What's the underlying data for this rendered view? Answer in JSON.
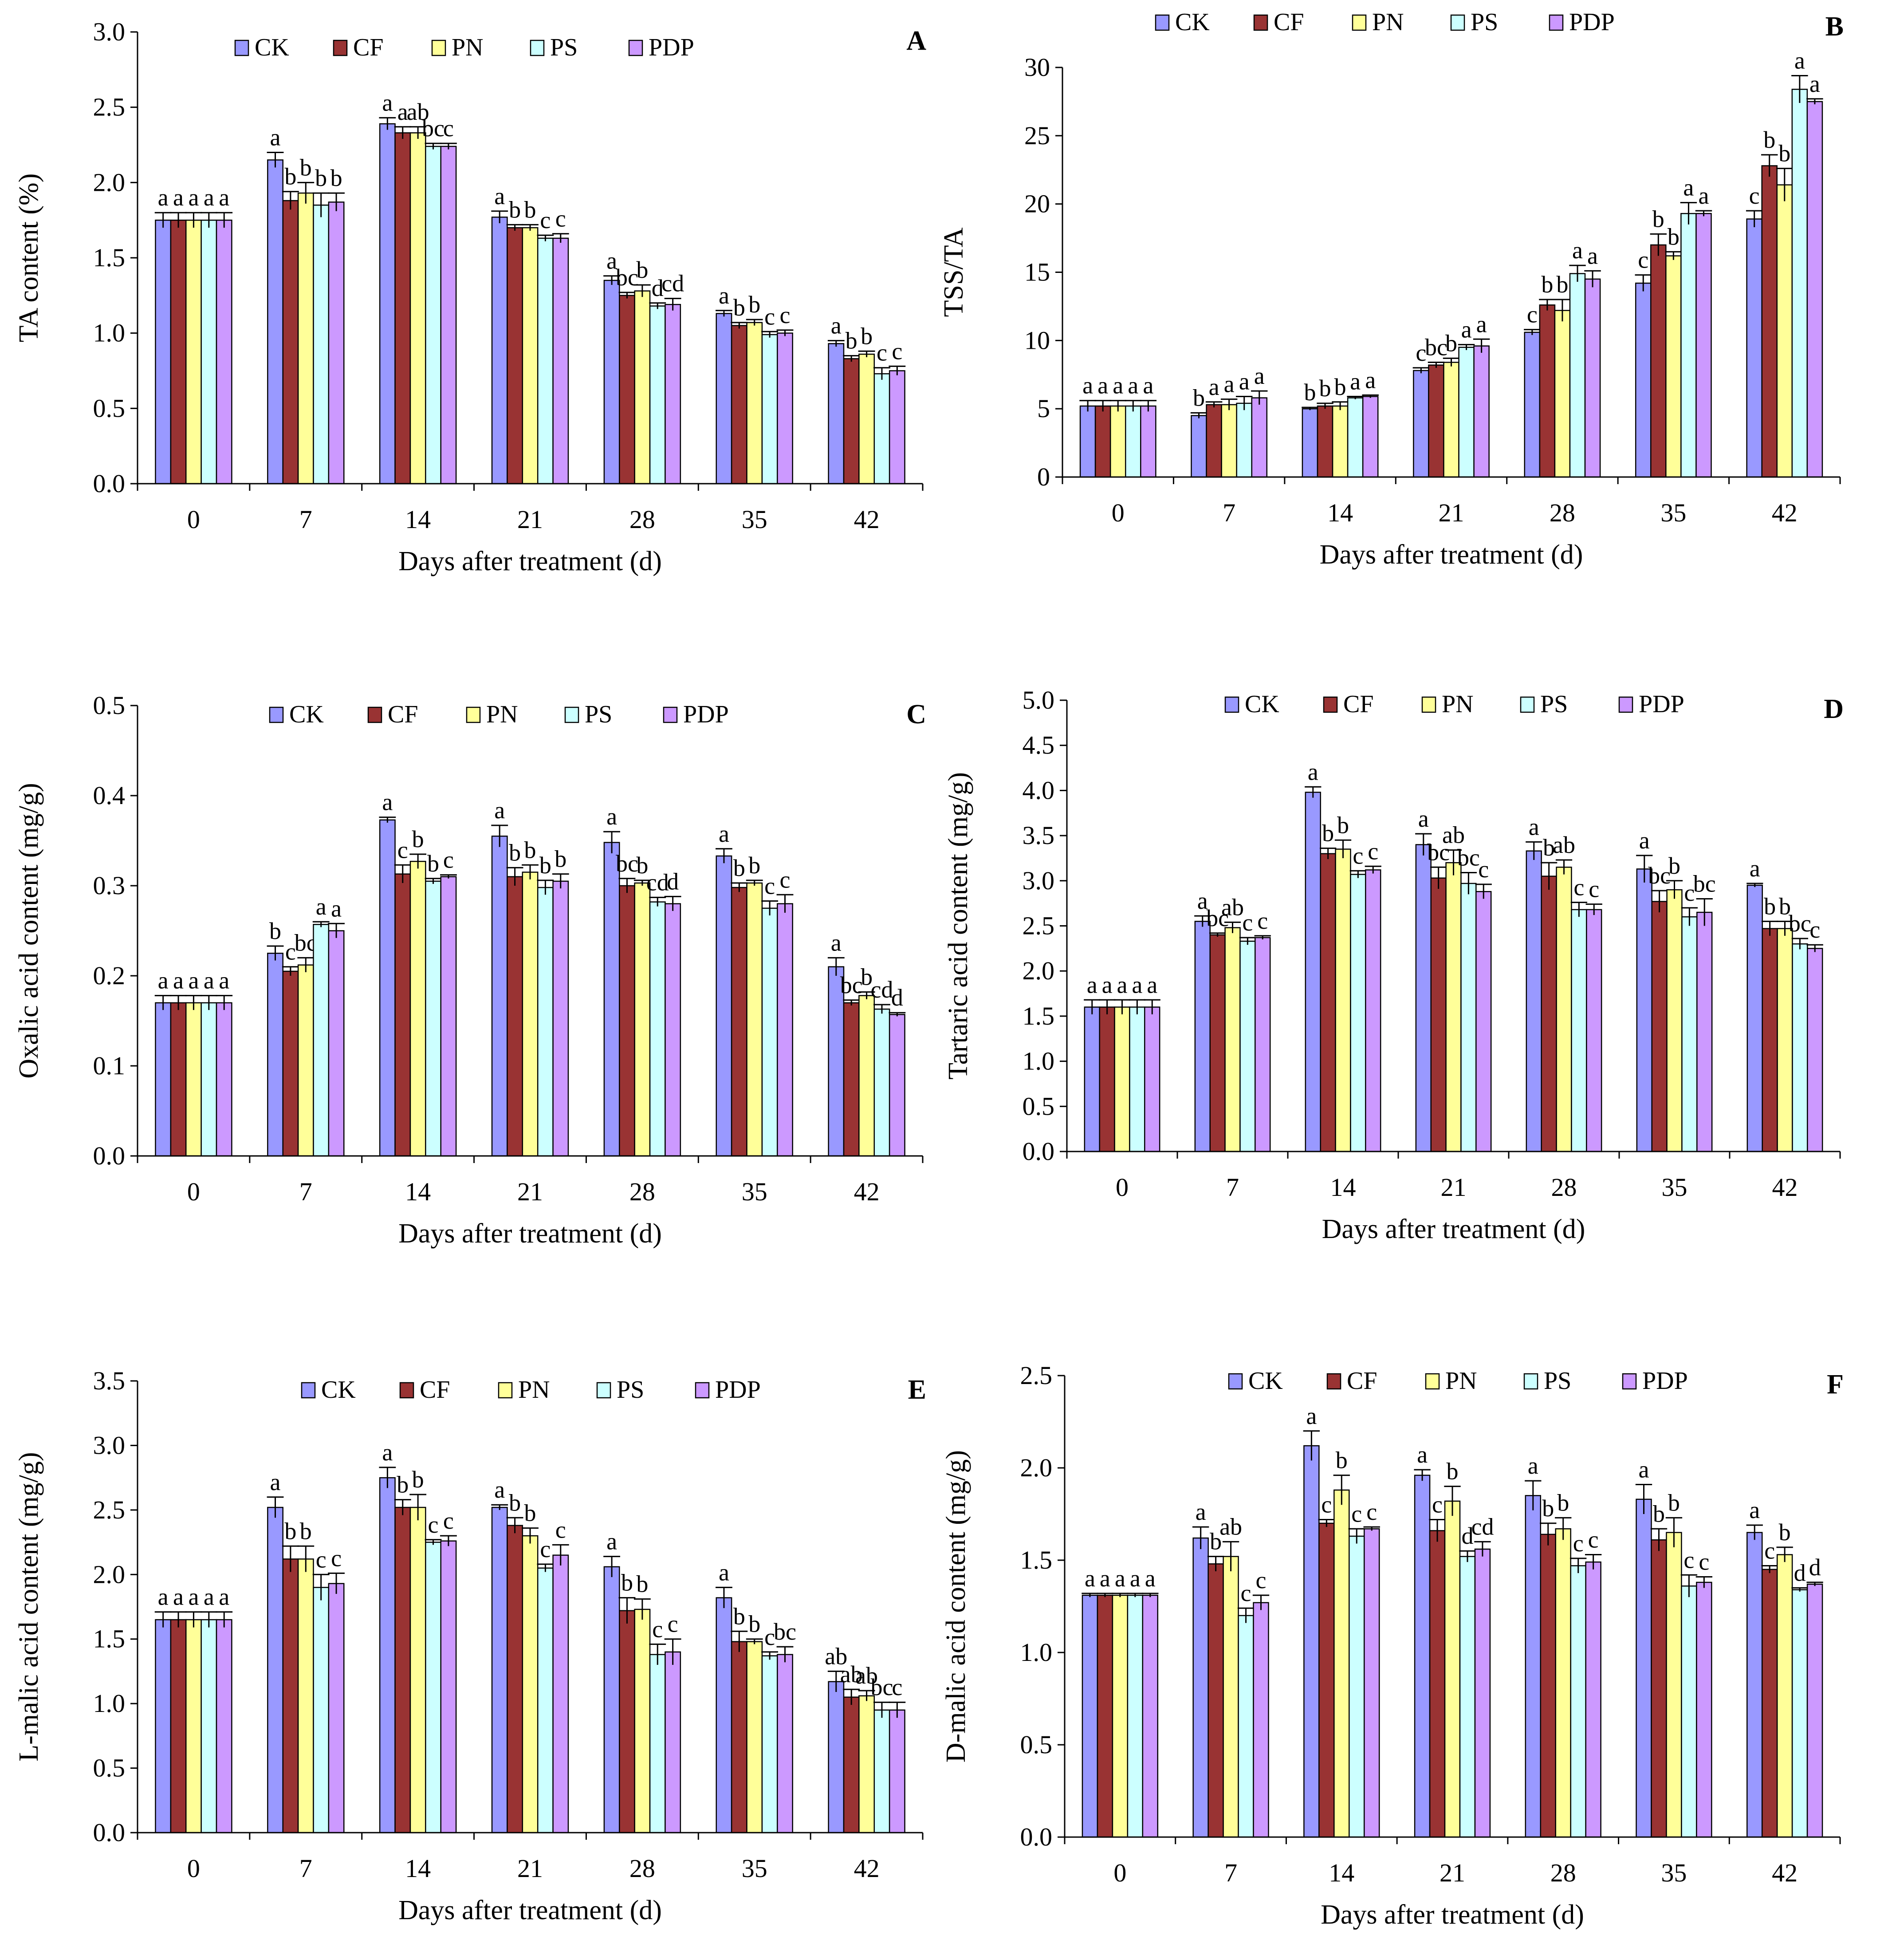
{
  "figure": {
    "series_colors": [
      "#9999FF",
      "#993333",
      "#FFFF99",
      "#CCFFFF",
      "#CC99FF"
    ]
  },
  "chart_data": [
    {
      "type": "bar",
      "panel": "A",
      "title": "",
      "xlabel": "Days after treatment (d)",
      "ylabel": "TA content (%)",
      "ylim": [
        0,
        3.0
      ],
      "ytick_step": 0.5,
      "ytick_decimals": 1,
      "categories": [
        "0",
        "7",
        "14",
        "21",
        "28",
        "35",
        "42"
      ],
      "legend": [
        "CK",
        "CF",
        "PN",
        "PS",
        "PDP"
      ],
      "series": [
        {
          "name": "CK",
          "values": [
            1.75,
            2.15,
            2.39,
            1.77,
            1.35,
            1.13,
            0.93
          ],
          "errors": [
            0.05,
            0.05,
            0.04,
            0.04,
            0.03,
            0.02,
            0.02
          ],
          "labels": [
            "a",
            "a",
            "a",
            "a",
            "a",
            "a",
            "a"
          ]
        },
        {
          "name": "CF",
          "values": [
            1.75,
            1.88,
            2.33,
            1.7,
            1.25,
            1.05,
            0.83
          ],
          "errors": [
            0.05,
            0.06,
            0.04,
            0.02,
            0.02,
            0.02,
            0.02
          ],
          "labels": [
            "a",
            "b",
            "a",
            "b",
            "bc",
            "b",
            "b"
          ]
        },
        {
          "name": "PN",
          "values": [
            1.75,
            1.93,
            2.33,
            1.7,
            1.28,
            1.07,
            0.86
          ],
          "errors": [
            0.05,
            0.07,
            0.04,
            0.02,
            0.04,
            0.02,
            0.02
          ],
          "labels": [
            "a",
            "b",
            "ab",
            "b",
            "b",
            "b",
            "b"
          ]
        },
        {
          "name": "PS",
          "values": [
            1.75,
            1.85,
            2.24,
            1.63,
            1.18,
            0.99,
            0.73
          ],
          "errors": [
            0.05,
            0.08,
            0.02,
            0.02,
            0.02,
            0.02,
            0.04
          ],
          "labels": [
            "a",
            "b",
            "bc",
            "c",
            "d",
            "c",
            "c"
          ]
        },
        {
          "name": "PDP",
          "values": [
            1.75,
            1.87,
            2.24,
            1.63,
            1.19,
            1.0,
            0.75
          ],
          "errors": [
            0.05,
            0.06,
            0.02,
            0.03,
            0.04,
            0.02,
            0.03
          ],
          "labels": [
            "a",
            "b",
            "c",
            "c",
            "cd",
            "c",
            "c"
          ]
        }
      ]
    },
    {
      "type": "bar",
      "panel": "B",
      "title": "",
      "xlabel": "Days after treatment (d)",
      "ylabel": "TSS/TA",
      "ylim": [
        0,
        30
      ],
      "ytick_step": 5,
      "ytick_decimals": 0,
      "categories": [
        "0",
        "7",
        "14",
        "21",
        "28",
        "35",
        "42"
      ],
      "legend": [
        "CK",
        "CF",
        "PN",
        "PS",
        "PDP"
      ],
      "series": [
        {
          "name": "CK",
          "values": [
            5.2,
            4.5,
            5.0,
            7.8,
            10.6,
            14.2,
            18.9
          ],
          "errors": [
            0.4,
            0.2,
            0.1,
            0.2,
            0.2,
            0.6,
            0.6
          ],
          "labels": [
            "a",
            "b",
            "b",
            "c",
            "c",
            "c",
            "c"
          ]
        },
        {
          "name": "CF",
          "values": [
            5.2,
            5.3,
            5.2,
            8.2,
            12.6,
            17.0,
            22.8
          ],
          "errors": [
            0.4,
            0.2,
            0.2,
            0.2,
            0.4,
            0.8,
            0.8
          ],
          "labels": [
            "a",
            "a",
            "b",
            "bc",
            "b",
            "b",
            "b"
          ]
        },
        {
          "name": "PN",
          "values": [
            5.2,
            5.3,
            5.2,
            8.4,
            12.2,
            16.2,
            21.4
          ],
          "errors": [
            0.4,
            0.4,
            0.3,
            0.3,
            0.8,
            0.3,
            1.2
          ],
          "labels": [
            "a",
            "a",
            "b",
            "b",
            "b",
            "b",
            "b"
          ]
        },
        {
          "name": "PS",
          "values": [
            5.2,
            5.4,
            5.8,
            9.5,
            14.9,
            19.3,
            28.4
          ],
          "errors": [
            0.4,
            0.5,
            0.1,
            0.2,
            0.6,
            0.8,
            1.0
          ],
          "labels": [
            "a",
            "a",
            "a",
            "a",
            "a",
            "a",
            "a"
          ]
        },
        {
          "name": "PDP",
          "values": [
            5.2,
            5.8,
            5.9,
            9.6,
            14.5,
            19.3,
            27.5
          ],
          "errors": [
            0.4,
            0.5,
            0.1,
            0.5,
            0.6,
            0.2,
            0.2
          ],
          "labels": [
            "a",
            "a",
            "a",
            "a",
            "a",
            "a",
            "a"
          ]
        }
      ]
    },
    {
      "type": "bar",
      "panel": "C",
      "title": "",
      "xlabel": "Days after treatment (d)",
      "ylabel": "Oxalic acid content (mg/g)",
      "ylim": [
        0,
        0.5
      ],
      "ytick_step": 0.1,
      "ytick_decimals": 1,
      "categories": [
        "0",
        "7",
        "14",
        "21",
        "28",
        "35",
        "42"
      ],
      "legend": [
        "CK",
        "CF",
        "PN",
        "PS",
        "PDP"
      ],
      "series": [
        {
          "name": "CK",
          "values": [
            0.17,
            0.225,
            0.373,
            0.355,
            0.348,
            0.333,
            0.21
          ],
          "errors": [
            0.008,
            0.008,
            0.003,
            0.012,
            0.012,
            0.008,
            0.01
          ],
          "labels": [
            "a",
            "b",
            "a",
            "a",
            "a",
            "a",
            "a"
          ]
        },
        {
          "name": "CF",
          "values": [
            0.17,
            0.205,
            0.313,
            0.31,
            0.3,
            0.298,
            0.17
          ],
          "errors": [
            0.008,
            0.005,
            0.01,
            0.01,
            0.008,
            0.005,
            0.003
          ],
          "labels": [
            "a",
            "c",
            "c",
            "b",
            "bc",
            "b",
            "bc"
          ]
        },
        {
          "name": "PN",
          "values": [
            0.17,
            0.212,
            0.327,
            0.315,
            0.303,
            0.303,
            0.178
          ],
          "errors": [
            0.008,
            0.008,
            0.008,
            0.008,
            0.003,
            0.003,
            0.004
          ],
          "labels": [
            "a",
            "bc",
            "b",
            "b",
            "b",
            "b",
            "b"
          ]
        },
        {
          "name": "PS",
          "values": [
            0.17,
            0.257,
            0.305,
            0.298,
            0.282,
            0.275,
            0.163
          ],
          "errors": [
            0.008,
            0.003,
            0.003,
            0.008,
            0.005,
            0.008,
            0.005
          ],
          "labels": [
            "a",
            "a",
            "b",
            "b",
            "cd",
            "c",
            "cd"
          ]
        },
        {
          "name": "PDP",
          "values": [
            0.17,
            0.25,
            0.31,
            0.305,
            0.28,
            0.28,
            0.157
          ],
          "errors": [
            0.008,
            0.008,
            0.002,
            0.008,
            0.008,
            0.01,
            0.002
          ],
          "labels": [
            "a",
            "a",
            "c",
            "b",
            "d",
            "c",
            "d"
          ]
        }
      ]
    },
    {
      "type": "bar",
      "panel": "D",
      "title": "",
      "xlabel": "Days after treatment (d)",
      "ylabel": "Tartaric acid content (mg/g)",
      "ylim": [
        0,
        5.0
      ],
      "ytick_step": 0.5,
      "ytick_decimals": 1,
      "categories": [
        "0",
        "7",
        "14",
        "21",
        "28",
        "35",
        "42"
      ],
      "legend": [
        "CK",
        "CF",
        "PN",
        "PS",
        "PDP"
      ],
      "series": [
        {
          "name": "CK",
          "values": [
            1.6,
            2.55,
            3.98,
            3.4,
            3.33,
            3.13,
            2.95
          ],
          "errors": [
            0.08,
            0.06,
            0.06,
            0.12,
            0.1,
            0.15,
            0.02
          ],
          "labels": [
            "a",
            "a",
            "a",
            "a",
            "a",
            "a",
            "a"
          ]
        },
        {
          "name": "CF",
          "values": [
            1.6,
            2.4,
            3.3,
            3.03,
            3.05,
            2.77,
            2.47
          ],
          "errors": [
            0.08,
            0.02,
            0.06,
            0.12,
            0.15,
            0.12,
            0.08
          ],
          "labels": [
            "a",
            "bc",
            "b",
            "bc",
            "b",
            "bc",
            "b"
          ]
        },
        {
          "name": "PN",
          "values": [
            1.6,
            2.48,
            3.35,
            3.2,
            3.15,
            2.9,
            2.47
          ],
          "errors": [
            0.08,
            0.06,
            0.1,
            0.14,
            0.08,
            0.1,
            0.08
          ],
          "labels": [
            "a",
            "ab",
            "b",
            "ab",
            "ab",
            "b",
            "b"
          ]
        },
        {
          "name": "PS",
          "values": [
            1.6,
            2.33,
            3.07,
            2.97,
            2.68,
            2.6,
            2.3
          ],
          "errors": [
            0.08,
            0.04,
            0.04,
            0.12,
            0.08,
            0.1,
            0.06
          ],
          "labels": [
            "a",
            "c",
            "c",
            "bc",
            "c",
            "c",
            "bc"
          ]
        },
        {
          "name": "PDP",
          "values": [
            1.6,
            2.37,
            3.12,
            2.88,
            2.68,
            2.65,
            2.25
          ],
          "errors": [
            0.08,
            0.02,
            0.04,
            0.08,
            0.06,
            0.15,
            0.04
          ],
          "labels": [
            "a",
            "c",
            "c",
            "c",
            "c",
            "bc",
            "c"
          ]
        }
      ]
    },
    {
      "type": "bar",
      "panel": "E",
      "title": "",
      "xlabel": "Days after treatment (d)",
      "ylabel": "L-malic acid content (mg/g)",
      "ylim": [
        0,
        3.5
      ],
      "ytick_step": 0.5,
      "ytick_decimals": 1,
      "categories": [
        "0",
        "7",
        "14",
        "21",
        "28",
        "35",
        "42"
      ],
      "legend": [
        "CK",
        "CF",
        "PN",
        "PS",
        "PDP"
      ],
      "series": [
        {
          "name": "CK",
          "values": [
            1.65,
            2.52,
            2.75,
            2.52,
            2.06,
            1.82,
            1.17
          ],
          "errors": [
            0.06,
            0.08,
            0.08,
            0.02,
            0.08,
            0.08,
            0.08
          ],
          "labels": [
            "a",
            "a",
            "a",
            "a",
            "a",
            "a",
            "ab"
          ]
        },
        {
          "name": "CF",
          "values": [
            1.65,
            2.12,
            2.52,
            2.38,
            1.72,
            1.48,
            1.05
          ],
          "errors": [
            0.06,
            0.1,
            0.06,
            0.06,
            0.1,
            0.08,
            0.06
          ],
          "labels": [
            "a",
            "b",
            "b",
            "b",
            "b",
            "b",
            "ab"
          ]
        },
        {
          "name": "PN",
          "values": [
            1.65,
            2.12,
            2.52,
            2.3,
            1.73,
            1.48,
            1.06
          ],
          "errors": [
            0.06,
            0.1,
            0.1,
            0.06,
            0.08,
            0.02,
            0.04
          ],
          "labels": [
            "a",
            "b",
            "b",
            "b",
            "b",
            "b",
            "ab"
          ]
        },
        {
          "name": "PS",
          "values": [
            1.65,
            1.9,
            2.25,
            2.05,
            1.38,
            1.37,
            0.95
          ],
          "errors": [
            0.06,
            0.1,
            0.02,
            0.03,
            0.08,
            0.03,
            0.06
          ],
          "labels": [
            "a",
            "c",
            "c",
            "c",
            "c",
            "c",
            "bc"
          ]
        },
        {
          "name": "PDP",
          "values": [
            1.65,
            1.93,
            2.26,
            2.15,
            1.4,
            1.38,
            0.95
          ],
          "errors": [
            0.06,
            0.08,
            0.04,
            0.08,
            0.1,
            0.06,
            0.06
          ],
          "labels": [
            "a",
            "c",
            "c",
            "c",
            "c",
            "bc",
            "c"
          ]
        }
      ]
    },
    {
      "type": "bar",
      "panel": "F",
      "title": "",
      "xlabel": "Days after treatment (d)",
      "ylabel": "D-malic acid content (mg/g)",
      "ylim": [
        0,
        2.5
      ],
      "ytick_step": 0.5,
      "ytick_decimals": 1,
      "categories": [
        "0",
        "7",
        "14",
        "21",
        "28",
        "35",
        "42"
      ],
      "legend": [
        "CK",
        "CF",
        "PN",
        "PS",
        "PDP"
      ],
      "series": [
        {
          "name": "CK",
          "values": [
            1.31,
            1.62,
            2.12,
            1.96,
            1.85,
            1.83,
            1.65
          ],
          "errors": [
            0.01,
            0.06,
            0.08,
            0.03,
            0.08,
            0.08,
            0.04
          ],
          "labels": [
            "a",
            "a",
            "a",
            "a",
            "a",
            "a",
            "a"
          ]
        },
        {
          "name": "CF",
          "values": [
            1.31,
            1.48,
            1.7,
            1.66,
            1.64,
            1.61,
            1.45
          ],
          "errors": [
            0.01,
            0.04,
            0.02,
            0.06,
            0.06,
            0.06,
            0.02
          ],
          "labels": [
            "a",
            "b",
            "c",
            "c",
            "b",
            "b",
            "c"
          ]
        },
        {
          "name": "PN",
          "values": [
            1.31,
            1.52,
            1.88,
            1.82,
            1.67,
            1.65,
            1.53
          ],
          "errors": [
            0.01,
            0.08,
            0.08,
            0.08,
            0.06,
            0.08,
            0.04
          ],
          "labels": [
            "a",
            "ab",
            "b",
            "b",
            "b",
            "b",
            "b"
          ]
        },
        {
          "name": "PS",
          "values": [
            1.31,
            1.2,
            1.63,
            1.52,
            1.47,
            1.36,
            1.34
          ],
          "errors": [
            0.01,
            0.04,
            0.04,
            0.03,
            0.04,
            0.06,
            0.01
          ],
          "labels": [
            "a",
            "c",
            "c",
            "d",
            "c",
            "c",
            "d"
          ]
        },
        {
          "name": "PDP",
          "values": [
            1.31,
            1.27,
            1.67,
            1.56,
            1.49,
            1.38,
            1.37
          ],
          "errors": [
            0.01,
            0.04,
            0.01,
            0.04,
            0.04,
            0.03,
            0.01
          ],
          "labels": [
            "a",
            "c",
            "c",
            "cd",
            "c",
            "c",
            "d"
          ]
        }
      ]
    }
  ]
}
